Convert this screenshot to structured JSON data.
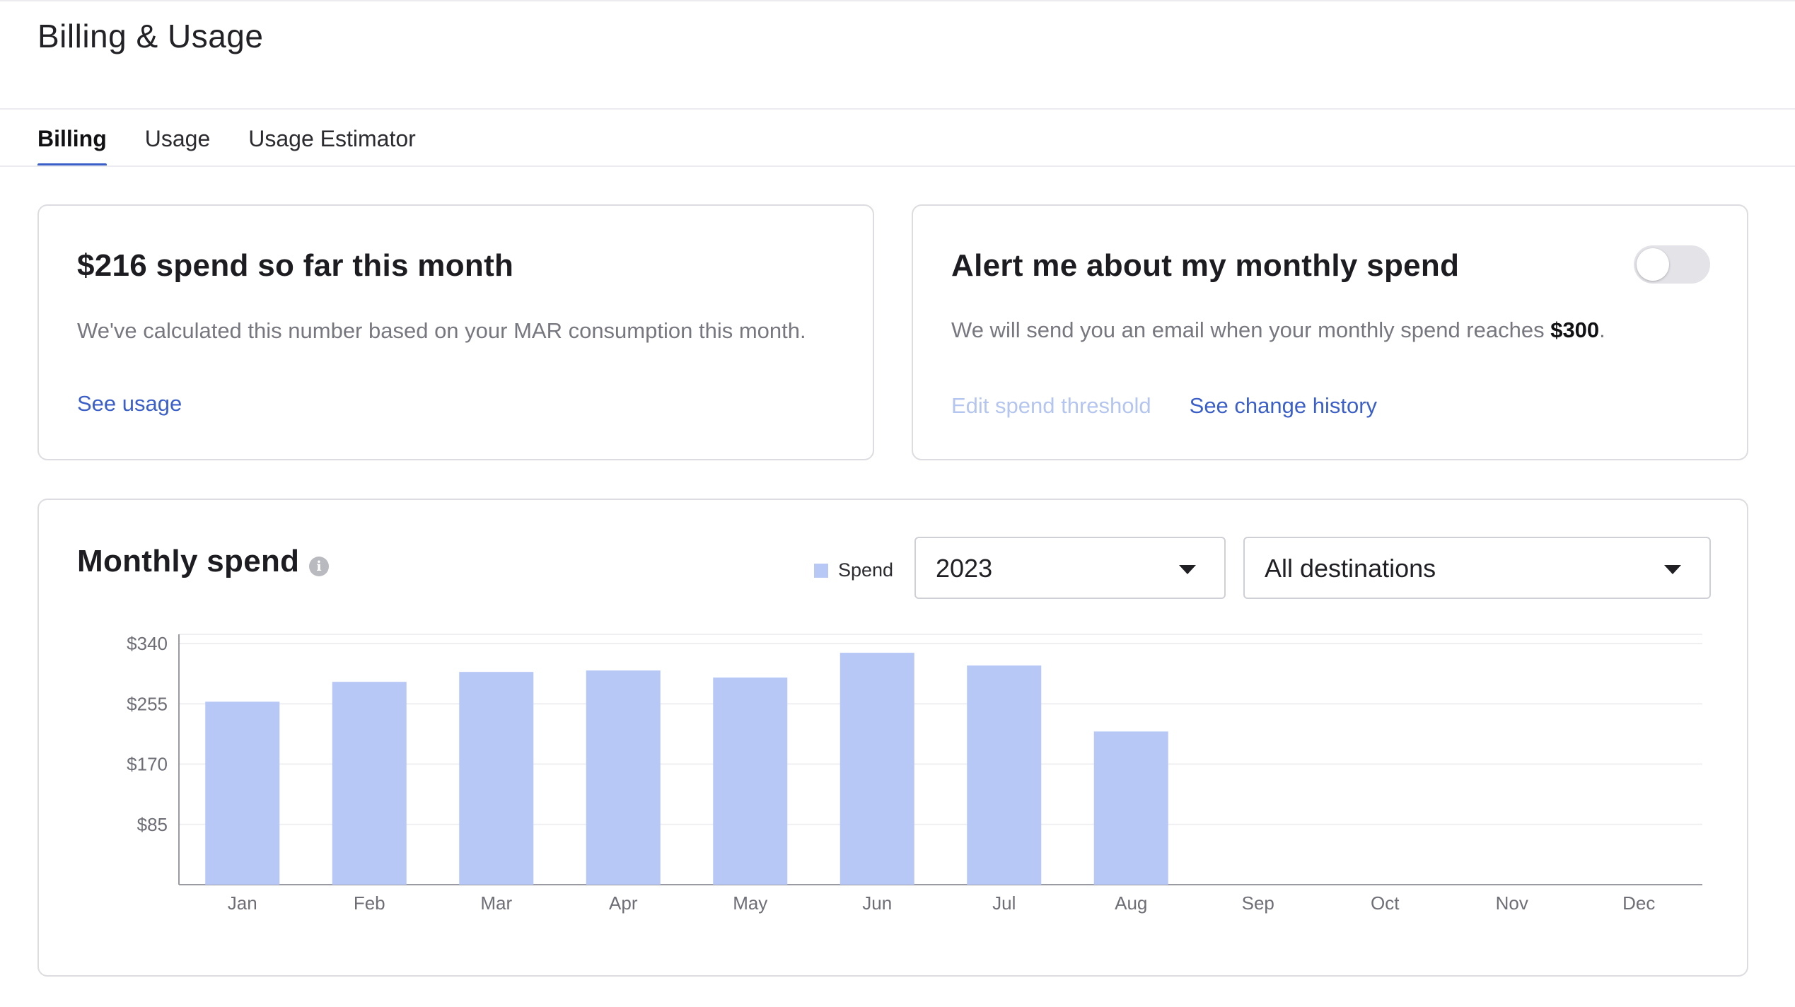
{
  "page": {
    "title": "Billing & Usage"
  },
  "tabs": [
    {
      "label": "Billing",
      "active": true
    },
    {
      "label": "Usage",
      "active": false
    },
    {
      "label": "Usage Estimator",
      "active": false
    }
  ],
  "spend_card": {
    "title": "$216 spend so far this month",
    "description": "We've calculated this number based on your MAR consumption this month.",
    "link": "See usage"
  },
  "alert_card": {
    "title": "Alert me about my monthly spend",
    "toggle_on": false,
    "description_prefix": "We will send you an email when your monthly spend reaches ",
    "threshold": "$300",
    "description_suffix": ".",
    "edit_link": "Edit spend threshold",
    "history_link": "See change history"
  },
  "chart_card": {
    "title": "Monthly spend",
    "info_icon": "info-icon",
    "legend_label": "Spend",
    "year_select": {
      "value": "2023"
    },
    "destination_select": {
      "value": "All destinations"
    }
  },
  "colors": {
    "accent": "#3b5fc9",
    "bar": "#b7c8f7",
    "link_disabled": "#b4c5ef"
  },
  "chart_data": {
    "type": "bar",
    "categories": [
      "Jan",
      "Feb",
      "Mar",
      "Apr",
      "May",
      "Jun",
      "Jul",
      "Aug",
      "Sep",
      "Oct",
      "Nov",
      "Dec"
    ],
    "series": [
      {
        "name": "Spend",
        "values": [
          258,
          286,
          300,
          302,
          292,
          327,
          309,
          216,
          null,
          null,
          null,
          null
        ]
      }
    ],
    "yticks": [
      "$340",
      "$255",
      "$170",
      "$85"
    ],
    "ytick_values": [
      340,
      255,
      170,
      85
    ],
    "ylim": [
      0,
      340
    ],
    "grid": true,
    "legend": "top-right"
  }
}
